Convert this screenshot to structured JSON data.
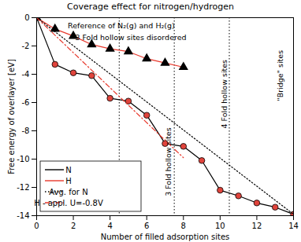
{
  "chart_data": {
    "type": "line",
    "title": "Coverage effect for nitrogen/hydrogen",
    "x_label": "Number of filled adsorption sites",
    "y_label": "Free energy of overlayer [eV]",
    "xlim": [
      0,
      14
    ],
    "ylim": [
      -14,
      0
    ],
    "xticks": [
      0,
      2,
      4,
      6,
      8,
      10,
      12,
      14
    ],
    "yticks": [
      0,
      -2,
      -4,
      -6,
      -8,
      -10,
      -12,
      -14
    ],
    "grid": false,
    "legend": "lower left",
    "series": [
      {
        "name": "N",
        "color": "#000000",
        "marker": "circle",
        "line_style": "solid",
        "x": [
          0,
          1,
          2,
          3,
          4,
          5,
          6,
          7,
          8,
          9,
          10,
          11,
          12,
          13,
          14
        ],
        "values": [
          0,
          -3.3,
          -3.9,
          -4.1,
          -5.7,
          -5.9,
          -6.9,
          -8.9,
          -9.1,
          -10.1,
          -12.2,
          -12.6,
          -13.1,
          -13.4,
          -13.9
        ]
      },
      {
        "name": "H",
        "color": "#e8382c",
        "marker": "triangle",
        "line_style": "solid",
        "x": [
          0,
          1,
          2,
          3,
          4,
          5,
          6,
          7,
          8
        ],
        "values": [
          0,
          -0.8,
          -1.3,
          -1.9,
          -2.2,
          -2.4,
          -2.9,
          -3.2,
          -3.5
        ]
      },
      {
        "name": "Avg. for N",
        "color": "#000000",
        "marker": "none",
        "line_style": "dotted",
        "x": [
          0,
          14
        ],
        "values": [
          0,
          -13.9
        ]
      },
      {
        "name": "H - appl. U=-0.8V",
        "color": "#e8382c",
        "marker": "none",
        "line_style": "dashdot",
        "x": [
          0,
          8
        ],
        "values": [
          0,
          -9.9
        ]
      }
    ],
    "vlines": [
      4.5,
      7.5,
      10.5
    ],
    "vline_style": "dotted",
    "annotations": [
      {
        "text": "Reference of N₂(g) and H₂(g)",
        "x": 1.7,
        "y": -0.6
      },
      {
        "text": "3 Fold hollow sites disordered",
        "x": 2.1,
        "y": -1.4
      },
      {
        "text": "3 Fold hollow sites",
        "x": 7.2,
        "y": -10.2
      },
      {
        "text": "4 Fold hollow sites",
        "x": 10.25,
        "y": -5.4
      },
      {
        "text": "\"Bridge\" sites",
        "x": 13.3,
        "y": -4.1
      }
    ]
  }
}
